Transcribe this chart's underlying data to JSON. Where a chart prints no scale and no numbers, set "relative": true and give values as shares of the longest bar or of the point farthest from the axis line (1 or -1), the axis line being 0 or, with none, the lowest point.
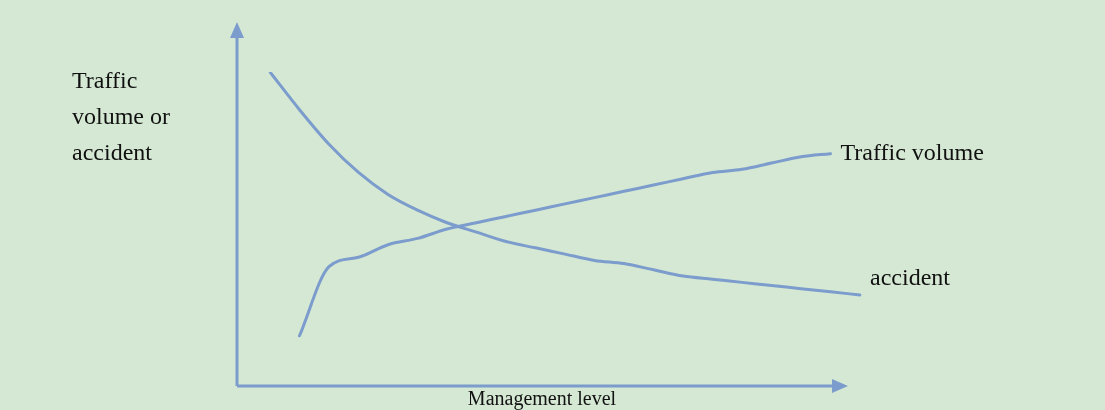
{
  "chart_data": {
    "type": "line",
    "relative": true,
    "xlabel": "Management level",
    "ylabel": "Traffic volume or accident",
    "marker": "none",
    "categories": [
      null,
      null,
      null,
      null,
      null,
      null,
      null,
      null,
      null,
      null,
      null,
      null,
      null,
      null,
      null,
      null,
      null,
      null,
      null,
      null,
      null
    ],
    "series": [
      {
        "name": "Traffic volume",
        "color": "#7b9ccc",
        "values": [
          null,
          0.16,
          0.38,
          0.41,
          0.45,
          0.47,
          0.5,
          0.52,
          0.54,
          0.56,
          0.58,
          0.6,
          0.62,
          0.64,
          0.66,
          0.68,
          0.69,
          0.71,
          0.73,
          0.74,
          null
        ]
      },
      {
        "name": "accident",
        "color": "#7b9ccc",
        "values": [
          1,
          0.88,
          0.77,
          0.68,
          0.61,
          0.56,
          0.52,
          0.49,
          0.46,
          0.44,
          0.42,
          0.4,
          0.39,
          0.37,
          0.35,
          0.34,
          0.33,
          0.32,
          0.31,
          0.3,
          0.29
        ]
      }
    ]
  }
}
